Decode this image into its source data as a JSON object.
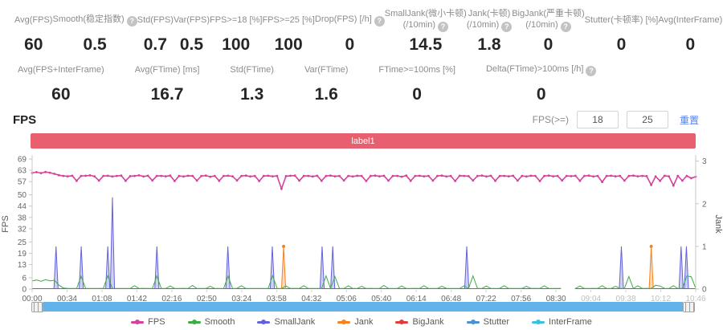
{
  "stats_row1": [
    {
      "id": "avg-fps",
      "l1": "Avg(FPS)",
      "l2": "",
      "help": false,
      "v": "60"
    },
    {
      "id": "smooth",
      "l1": "Smooth(稳定指数)",
      "l2": "",
      "help": true,
      "v": "0.5"
    },
    {
      "id": "std-fps",
      "l1": "Std(FPS)",
      "l2": "",
      "help": false,
      "v": "0.7"
    },
    {
      "id": "var-fps",
      "l1": "Var(FPS)",
      "l2": "",
      "help": false,
      "v": "0.5"
    },
    {
      "id": "fps-ge-18",
      "l1": "FPS>=18 [%]",
      "l2": "",
      "help": false,
      "v": "100"
    },
    {
      "id": "fps-ge-25",
      "l1": "FPS>=25 [%]",
      "l2": "",
      "help": false,
      "v": "100"
    },
    {
      "id": "drop-fps",
      "l1": "Drop(FPS) [/h]",
      "l2": "",
      "help": true,
      "v": "0"
    },
    {
      "id": "small-jank",
      "l1": "SmallJank(微小卡顿)",
      "l2": "(/10min)",
      "help": true,
      "v": "14.5"
    },
    {
      "id": "jank",
      "l1": "Jank(卡顿)",
      "l2": "(/10min)",
      "help": true,
      "v": "1.8"
    },
    {
      "id": "big-jank",
      "l1": "BigJank(严重卡顿)",
      "l2": "(/10min)",
      "help": true,
      "v": "0"
    },
    {
      "id": "stutter",
      "l1": "Stutter(卡顿率) [%]",
      "l2": "",
      "help": false,
      "v": "0"
    },
    {
      "id": "avg-interframe",
      "l1": "Avg(InterFrame)",
      "l2": "",
      "help": false,
      "v": "0"
    }
  ],
  "stats_row2": [
    {
      "id": "avg-fps-interframe",
      "l1": "Avg(FPS+InterFrame)",
      "l2": "",
      "help": false,
      "v": "60"
    },
    {
      "id": "avg-ftime",
      "l1": "Avg(FTime) [ms]",
      "l2": "",
      "help": false,
      "v": "16.7"
    },
    {
      "id": "std-ftime",
      "l1": "Std(FTime)",
      "l2": "",
      "help": false,
      "v": "1.3"
    },
    {
      "id": "var-ftime",
      "l1": "Var(FTime)",
      "l2": "",
      "help": false,
      "v": "1.6"
    },
    {
      "id": "ftime-ge-100ms",
      "l1": "FTime>=100ms [%]",
      "l2": "",
      "help": false,
      "v": "0"
    },
    {
      "id": "delta-ftime",
      "l1": "Delta(FTime)>100ms [/h]",
      "l2": "",
      "help": true,
      "v": "0"
    }
  ],
  "section": {
    "title": "FPS"
  },
  "fps_filter": {
    "label": "FPS(>=)",
    "low": "18",
    "high": "25",
    "reset_label": "重置"
  },
  "banner": {
    "text": "label1",
    "color": "#e8606f"
  },
  "legend": [
    {
      "name": "FPS",
      "color": "#d6409c"
    },
    {
      "name": "Smooth",
      "color": "#3cab47"
    },
    {
      "name": "SmallJank",
      "color": "#6262dd"
    },
    {
      "name": "Jank",
      "color": "#f5821f"
    },
    {
      "name": "BigJank",
      "color": "#e23b3b"
    },
    {
      "name": "Stutter",
      "color": "#4b8fd4"
    },
    {
      "name": "InterFrame",
      "color": "#35c3e0"
    }
  ],
  "chart_data": {
    "type": "line",
    "title": "label1",
    "x_labels": [
      "00:00",
      "00:34",
      "01:08",
      "01:42",
      "02:16",
      "02:50",
      "03:24",
      "03:58",
      "04:32",
      "05:06",
      "05:40",
      "06:14",
      "06:48",
      "07:22",
      "07:56",
      "08:30",
      "09:04",
      "09:38",
      "10:12",
      "10:46"
    ],
    "x_faded": [
      16,
      17,
      18,
      19
    ],
    "y_left": {
      "label": "FPS",
      "max": 69,
      "ticks": [
        69,
        63,
        57,
        50,
        44,
        38,
        32,
        25,
        19,
        13,
        6,
        0
      ]
    },
    "y_right": {
      "label": "Jank",
      "max": 3.05,
      "ticks": [
        3,
        2,
        1,
        0
      ]
    },
    "legend_position": "bottom",
    "grid": false,
    "splice_gap": {
      "from": 0.797,
      "to": 0.818
    },
    "series": [
      {
        "name": "InterFrame",
        "color": "#35c3e0",
        "axis": "right",
        "type": "flat",
        "value": 0
      },
      {
        "name": "Stutter",
        "color": "#4b8fd4",
        "axis": "right",
        "type": "flat",
        "value": 0
      },
      {
        "name": "BigJank",
        "color": "#e23b3b",
        "axis": "right",
        "type": "flat",
        "value": 0
      },
      {
        "name": "SmallJank",
        "color": "#6262dd",
        "axis": "right",
        "type": "spikes",
        "marker": false,
        "points": [
          [
            0.036,
            1
          ],
          [
            0.074,
            1
          ],
          [
            0.114,
            1
          ],
          [
            0.121,
            2.15
          ],
          [
            0.188,
            1
          ],
          [
            0.295,
            1
          ],
          [
            0.362,
            1
          ],
          [
            0.437,
            1
          ],
          [
            0.453,
            1
          ],
          [
            0.655,
            1
          ],
          [
            0.888,
            1
          ],
          [
            0.978,
            1
          ],
          [
            0.986,
            1
          ]
        ]
      },
      {
        "name": "Jank",
        "color": "#f5821f",
        "axis": "right",
        "type": "spikes",
        "marker": true,
        "points": [
          [
            0.379,
            1
          ],
          [
            0.933,
            1
          ]
        ]
      },
      {
        "name": "Smooth",
        "color": "#3cab47",
        "axis": "left",
        "type": "line",
        "marker": false,
        "width": 1,
        "values": [
          4.3,
          4.8,
          4.1,
          5,
          4.4,
          4.7,
          2.1,
          0.6,
          0.3,
          0.3,
          0.3,
          6.8,
          0.4,
          0.3,
          0.3,
          0.3,
          0.4,
          7.2,
          0.3,
          0.3,
          0.3,
          0.3,
          0.3,
          1.8,
          0.3,
          0.4,
          0.3,
          0.3,
          7,
          0.3,
          0.3,
          1.6,
          0.3,
          0.3,
          0.4,
          0.3,
          1.9,
          0.3,
          0.3,
          0.3,
          1.5,
          0.3,
          0.3,
          0.3,
          6.9,
          0.3,
          0.4,
          1.7,
          0.3,
          0.3,
          0.3,
          0.3,
          0.3,
          0.3,
          7.1,
          0.3,
          0.3,
          1.6,
          0.3,
          0.4,
          0.3,
          1.8,
          0.3,
          0.3,
          0.3,
          0.3,
          7,
          0.3,
          6.6,
          0.3,
          0.3,
          1.7,
          0.3,
          0.3,
          1.5,
          0.3,
          0.4,
          0.3,
          0.3,
          1.9,
          0.3,
          0.3,
          0.3,
          1.6,
          0.3,
          0.3,
          0.4,
          0.3,
          1.8,
          0.3,
          0.3,
          0.3,
          1.5,
          0.4,
          0.3,
          0.3,
          0.3,
          1.7,
          0.3,
          7,
          0.3,
          0.3,
          1.6,
          0.3,
          0.3,
          0.4,
          1.8,
          0.3,
          0.3,
          0.3,
          0.3,
          1.5,
          0.3,
          0.4,
          0.3,
          1.7,
          0.3,
          0.3,
          0.3,
          0.3,
          1.9,
          0.3,
          0.3,
          1.6,
          0.3,
          0.3,
          0.4,
          0.3,
          1.8,
          0.3,
          0.3,
          1.5,
          0.3,
          0.3,
          6.7,
          0.3,
          1.7,
          0.3,
          0.4,
          0.3,
          2,
          1.6,
          0.3,
          0.3,
          1.8,
          0.3,
          0.3,
          6.9,
          6.5,
          0.4
        ]
      },
      {
        "name": "FPS",
        "color": "#d6409c",
        "axis": "left",
        "type": "line",
        "marker": true,
        "width": 1.6,
        "values": [
          61.6,
          62,
          61.5,
          62.1,
          61.7,
          61.1,
          60.4,
          60,
          59.8,
          60.1,
          57.4,
          60,
          60.1,
          60.3,
          59.8,
          57.5,
          60,
          60.1,
          59.7,
          60,
          60.2,
          57.4,
          59.9,
          60,
          60.3,
          59.7,
          60.1,
          57.6,
          60,
          60,
          59.8,
          60.2,
          57.3,
          60,
          59.7,
          60.1,
          60,
          57.5,
          60,
          60.2,
          59.6,
          60,
          57.4,
          60,
          60.1,
          59.8,
          57.6,
          60,
          60.2,
          59.7,
          60,
          57.3,
          60,
          60.1,
          59.8,
          60,
          53.2,
          59.9,
          60.1,
          60.2,
          57.5,
          60,
          60,
          59.7,
          60.1,
          57.4,
          60,
          60.2,
          59.8,
          60,
          57.6,
          60,
          59.7,
          60.1,
          60,
          57.3,
          60,
          60.2,
          59.8,
          60.1,
          57.5,
          60,
          60,
          59.6,
          60.2,
          57.4,
          60,
          60.1,
          59.8,
          60,
          57.5,
          60,
          60.2,
          59.7,
          60,
          57.3,
          60.1,
          60,
          59.9,
          57.6,
          60,
          60.2,
          59.7,
          60.1,
          57.4,
          60,
          60,
          59.8,
          60.1,
          57.5,
          60,
          59.7,
          60.1,
          60,
          57.3,
          60,
          60.2,
          59.8,
          60,
          57.6,
          60,
          59.9,
          60.1,
          57.4,
          60,
          60.2,
          59.7,
          60,
          56.8,
          60,
          60.1,
          59.8,
          60,
          57.5,
          60,
          60.2,
          59.8,
          60,
          59.9,
          55.2,
          59.7,
          57.4,
          60.1,
          59.8,
          54.9,
          60,
          57.5,
          60,
          58.8,
          59.6
        ]
      }
    ]
  }
}
